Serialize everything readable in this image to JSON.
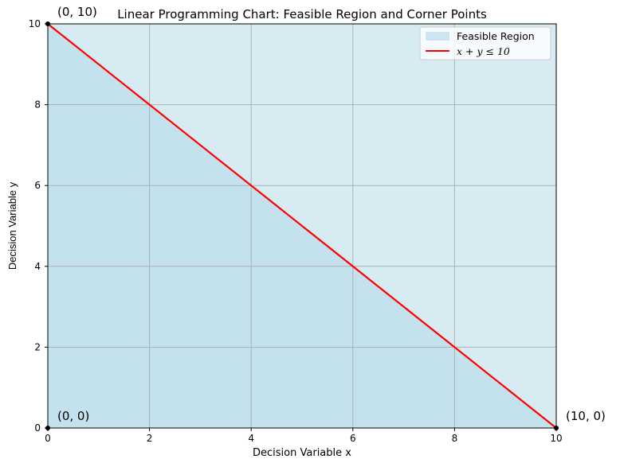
{
  "chart_data": {
    "type": "line",
    "title": "Linear Programming Chart: Feasible Region and Corner Points",
    "xlabel": "Decision Variable x",
    "ylabel": "Decision Variable y",
    "xlim": [
      0,
      10
    ],
    "ylim": [
      0,
      10
    ],
    "xticks": [
      0,
      2,
      4,
      6,
      8,
      10
    ],
    "yticks": [
      0,
      2,
      4,
      6,
      8,
      10
    ],
    "grid": true,
    "legend_position": "top-right",
    "series": [
      {
        "name": "Feasible Region",
        "kind": "area",
        "color": "#add8e6",
        "x": [
          0,
          10
        ],
        "y": [
          10,
          10
        ]
      },
      {
        "name": "x + y ≤ 10",
        "kind": "line",
        "color": "#ff0000",
        "x": [
          0,
          10
        ],
        "y": [
          10,
          0
        ]
      }
    ],
    "corner_points": [
      {
        "x": 0,
        "y": 0,
        "label": "(0, 0)"
      },
      {
        "x": 10,
        "y": 0,
        "label": "(10, 0)"
      },
      {
        "x": 0,
        "y": 10,
        "label": "(0, 10)"
      }
    ]
  }
}
